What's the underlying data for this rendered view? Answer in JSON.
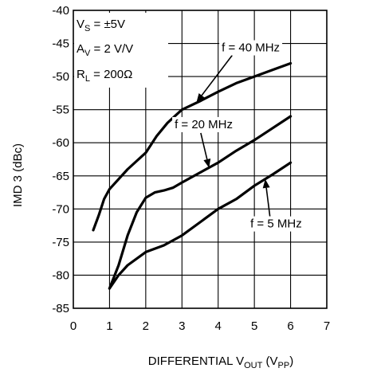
{
  "chart_data": {
    "type": "line",
    "xlabel_main": "DIFFERENTIAL V",
    "xlabel_sub1": "OUT",
    "xlabel_mid": " (V",
    "xlabel_sub2": "PP",
    "xlabel_end": ")",
    "ylabel": "IMD 3 (dBc)",
    "xlim": [
      0,
      7
    ],
    "ylim": [
      -85,
      -40
    ],
    "x_ticks": [
      0,
      1,
      2,
      3,
      4,
      5,
      6,
      7
    ],
    "y_ticks": [
      -40,
      -45,
      -50,
      -55,
      -60,
      -65,
      -70,
      -75,
      -80,
      -85
    ],
    "grid": true,
    "conditions": [
      {
        "main": "V",
        "sub": "S",
        "rest": " = ±5V"
      },
      {
        "main": "A",
        "sub": "V",
        "rest": " = 2 V/V"
      },
      {
        "main": "R",
        "sub": "L",
        "rest": " = 200Ω"
      }
    ],
    "series": [
      {
        "name": "f = 40 MHz",
        "points": [
          [
            0.55,
            -73.2
          ],
          [
            0.7,
            -71
          ],
          [
            0.85,
            -68.5
          ],
          [
            1.0,
            -67
          ],
          [
            1.2,
            -65.8
          ],
          [
            1.5,
            -64
          ],
          [
            2.0,
            -61.5
          ],
          [
            2.3,
            -59
          ],
          [
            2.6,
            -57
          ],
          [
            2.9,
            -55.5
          ],
          [
            3.0,
            -55
          ],
          [
            3.5,
            -53.7
          ],
          [
            4.0,
            -52.3
          ],
          [
            4.5,
            -51
          ],
          [
            5.0,
            -50
          ],
          [
            5.5,
            -49
          ],
          [
            6.0,
            -48
          ]
        ]
      },
      {
        "name": "f = 20 MHz",
        "points": [
          [
            1.0,
            -82
          ],
          [
            1.25,
            -78.5
          ],
          [
            1.5,
            -74
          ],
          [
            1.75,
            -70.5
          ],
          [
            2.0,
            -68.3
          ],
          [
            2.25,
            -67.5
          ],
          [
            2.5,
            -67.2
          ],
          [
            2.75,
            -66.8
          ],
          [
            3.0,
            -66
          ],
          [
            3.5,
            -64.5
          ],
          [
            4.0,
            -63
          ],
          [
            4.5,
            -61.2
          ],
          [
            5.0,
            -59.6
          ],
          [
            5.5,
            -57.8
          ],
          [
            6.0,
            -56
          ]
        ]
      },
      {
        "name": "f = 5 MHz",
        "points": [
          [
            1.0,
            -82
          ],
          [
            1.25,
            -80
          ],
          [
            1.5,
            -78.5
          ],
          [
            2.0,
            -76.5
          ],
          [
            2.5,
            -75.5
          ],
          [
            3.0,
            -74
          ],
          [
            3.5,
            -72
          ],
          [
            4.0,
            -70
          ],
          [
            4.5,
            -68.5
          ],
          [
            5.0,
            -66.5
          ],
          [
            5.5,
            -64.8
          ],
          [
            6.0,
            -63
          ]
        ]
      }
    ],
    "annotations": [
      {
        "text": "f = 40 MHz",
        "series": 0,
        "arrow_to": [
          3.4,
          -53.9
        ],
        "label_at": [
          4.9,
          -46.2
        ]
      },
      {
        "text": "f = 20 MHz",
        "series": 1,
        "arrow_to": [
          3.75,
          -63.8
        ],
        "label_at": [
          3.6,
          -57.8
        ]
      },
      {
        "text": "f = 5 MHz",
        "series": 2,
        "arrow_to": [
          5.3,
          -65.5
        ],
        "label_at": [
          5.6,
          -72.8
        ]
      }
    ]
  }
}
